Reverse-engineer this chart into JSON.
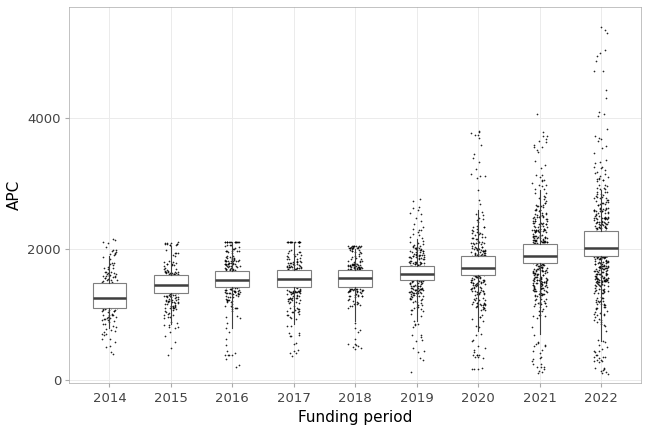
{
  "years": [
    2014,
    2015,
    2016,
    2017,
    2018,
    2019,
    2020,
    2021,
    2022
  ],
  "box_stats": {
    "2014": {
      "q1": 1100,
      "median": 1250,
      "q3": 1480,
      "whisker_low": 800,
      "whisker_high": 1900,
      "n_points": 120,
      "point_min": 380,
      "point_max": 2200,
      "point_mode": 1300,
      "point_sd": 280
    },
    "2015": {
      "q1": 1330,
      "median": 1450,
      "q3": 1600,
      "whisker_low": 850,
      "whisker_high": 2050,
      "n_points": 160,
      "point_min": 380,
      "point_max": 2100,
      "point_mode": 1450,
      "point_sd": 260
    },
    "2016": {
      "q1": 1420,
      "median": 1530,
      "q3": 1660,
      "whisker_low": 800,
      "whisker_high": 2100,
      "n_points": 200,
      "point_min": 150,
      "point_max": 2100,
      "point_mode": 1530,
      "point_sd": 270
    },
    "2017": {
      "q1": 1420,
      "median": 1540,
      "q3": 1680,
      "whisker_low": 850,
      "whisker_high": 2100,
      "n_points": 200,
      "point_min": 350,
      "point_max": 2100,
      "point_mode": 1540,
      "point_sd": 260
    },
    "2018": {
      "q1": 1420,
      "median": 1560,
      "q3": 1680,
      "whisker_low": 900,
      "whisker_high": 2000,
      "n_points": 190,
      "point_min": 450,
      "point_max": 2050,
      "point_mode": 1560,
      "point_sd": 250
    },
    "2019": {
      "q1": 1520,
      "median": 1620,
      "q3": 1740,
      "whisker_low": 900,
      "whisker_high": 2150,
      "n_points": 220,
      "point_min": 100,
      "point_max": 2800,
      "point_mode": 1620,
      "point_sd": 290
    },
    "2020": {
      "q1": 1610,
      "median": 1710,
      "q3": 1900,
      "whisker_low": 750,
      "whisker_high": 2600,
      "n_points": 260,
      "point_min": 150,
      "point_max": 4000,
      "point_mode": 1700,
      "point_sd": 380
    },
    "2021": {
      "q1": 1780,
      "median": 1900,
      "q3": 2080,
      "whisker_low": 700,
      "whisker_high": 2900,
      "n_points": 350,
      "point_min": 80,
      "point_max": 4100,
      "point_mode": 1900,
      "point_sd": 450
    },
    "2022": {
      "q1": 1900,
      "median": 2020,
      "q3": 2280,
      "whisker_low": 600,
      "whisker_high": 2900,
      "n_points": 400,
      "point_min": 80,
      "point_max": 5400,
      "point_mode": 2000,
      "point_sd": 550
    }
  },
  "xlabel": "Funding period",
  "ylabel": "APC",
  "ylim": [
    -50,
    5700
  ],
  "yticks": [
    0,
    2000,
    4000
  ],
  "background_color": "#ffffff",
  "grid_color": "#ebebeb",
  "box_facecolor": "#ffffff",
  "box_edge_color": "#7f7f7f",
  "median_color": "#3f3f3f",
  "whisker_color": "#3f3f3f",
  "point_color": "#000000",
  "box_width": 0.55,
  "label_fontsize": 11,
  "tick_fontsize": 9.5
}
